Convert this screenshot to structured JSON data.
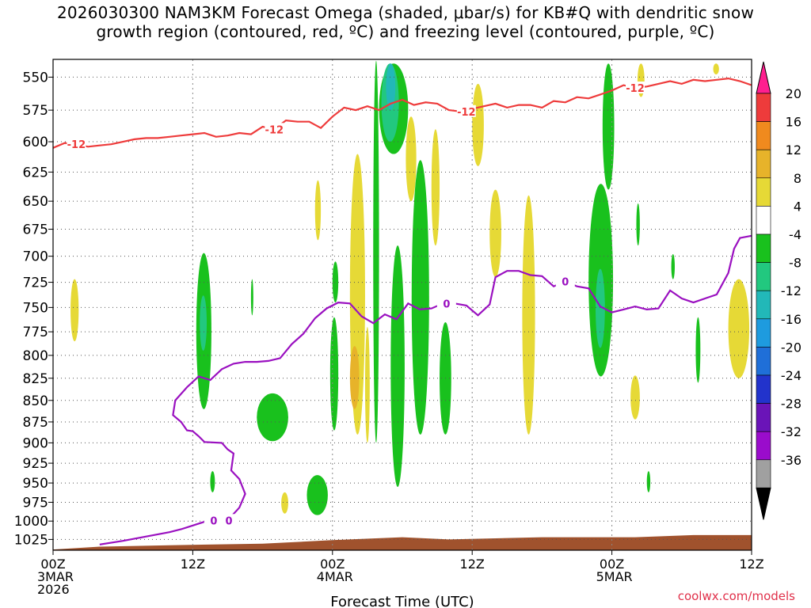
{
  "title_line1": "2026030300 NAM3KM Forecast Omega (shaded, μbar/s) for KB#Q with dendritic snow",
  "title_line2": "growth region (contoured, red, ºC) and freezing level (contoured, purple, ºC)",
  "credit": "coolwx.com/models",
  "chart_data": {
    "type": "heatmap",
    "xlabel": "Forecast Time (UTC)",
    "ylabel": "",
    "x_range_hours": [
      0,
      60
    ],
    "y_range_mb": [
      1040,
      537
    ],
    "y_scale": "log-pressure",
    "grid": true,
    "y_ticks": [
      550,
      575,
      600,
      625,
      650,
      675,
      700,
      725,
      750,
      775,
      800,
      825,
      850,
      875,
      900,
      925,
      950,
      975,
      1000,
      1025
    ],
    "x_ticks": [
      {
        "hour": 0,
        "lines": [
          "00Z",
          "3MAR",
          "2026"
        ]
      },
      {
        "hour": 12,
        "lines": [
          "12Z"
        ]
      },
      {
        "hour": 24,
        "lines": [
          "00Z",
          "4MAR"
        ]
      },
      {
        "hour": 36,
        "lines": [
          "12Z"
        ]
      },
      {
        "hour": 48,
        "lines": [
          "00Z",
          "5MAR"
        ]
      },
      {
        "hour": 60,
        "lines": [
          "12Z"
        ]
      }
    ],
    "colorbar": {
      "labels": [
        "20",
        "16",
        "12",
        "8",
        "4",
        "-4",
        "-8",
        "-12",
        "-16",
        "-20",
        "-24",
        "-28",
        "-32",
        "-36"
      ],
      "colors": [
        "#ff1f8f",
        "#ee3b3b",
        "#f08a1e",
        "#e7b32a",
        "#e6d936",
        "#ffffff",
        "#19c11d",
        "#22c87f",
        "#22b8b8",
        "#1e9bdf",
        "#1f6fd8",
        "#2233cc",
        "#6a14b8",
        "#9a0ccc",
        "#a0a0a0",
        "#000000"
      ]
    },
    "terrain_color": "#a0522d",
    "contour_labels": {
      "snow_dgz": "-12",
      "freezing": "0"
    },
    "snow_growth_contour": {
      "color": "#ee3b3b",
      "points": [
        [
          0,
          605
        ],
        [
          1,
          601
        ],
        [
          2,
          602
        ],
        [
          3,
          604
        ],
        [
          4,
          603
        ],
        [
          5,
          602
        ],
        [
          6,
          600
        ],
        [
          7,
          598
        ],
        [
          8,
          597
        ],
        [
          9,
          597
        ],
        [
          10,
          596
        ],
        [
          11,
          595
        ],
        [
          12,
          594
        ],
        [
          13,
          593
        ],
        [
          14,
          596
        ],
        [
          15,
          595
        ],
        [
          16,
          593
        ],
        [
          17,
          594
        ],
        [
          18,
          588
        ],
        [
          19,
          590
        ],
        [
          20,
          583
        ],
        [
          21,
          584
        ],
        [
          22,
          584
        ],
        [
          23,
          589
        ],
        [
          24,
          580
        ],
        [
          25,
          573
        ],
        [
          26,
          575
        ],
        [
          27,
          572
        ],
        [
          28,
          575
        ],
        [
          29,
          570
        ],
        [
          30,
          567
        ],
        [
          31,
          571
        ],
        [
          32,
          569
        ],
        [
          33,
          570
        ],
        [
          34,
          575
        ],
        [
          35,
          576
        ],
        [
          36,
          574
        ],
        [
          37,
          572
        ],
        [
          38,
          570
        ],
        [
          39,
          573
        ],
        [
          40,
          571
        ],
        [
          41,
          571
        ],
        [
          42,
          573
        ],
        [
          43,
          568
        ],
        [
          44,
          569
        ],
        [
          45,
          565
        ],
        [
          46,
          566
        ],
        [
          47,
          563
        ],
        [
          48,
          560
        ],
        [
          49,
          556
        ],
        [
          50,
          558
        ],
        [
          51,
          557
        ],
        [
          52,
          555
        ],
        [
          53,
          553
        ],
        [
          54,
          555
        ],
        [
          55,
          552
        ],
        [
          56,
          553
        ],
        [
          57,
          552
        ],
        [
          58,
          551
        ],
        [
          59,
          553
        ],
        [
          60,
          556
        ]
      ],
      "label_hours": [
        2,
        19,
        35.5,
        50
      ]
    },
    "freezing_level_contour": {
      "color": "#9a10c0",
      "points": [
        [
          4,
          1032
        ],
        [
          6,
          1027
        ],
        [
          8,
          1021
        ],
        [
          10,
          1015
        ],
        [
          11,
          1011
        ],
        [
          12,
          1006
        ],
        [
          13,
          1001
        ],
        [
          14,
          999
        ],
        [
          15,
          999
        ],
        [
          16,
          982
        ],
        [
          16.5,
          964
        ],
        [
          16,
          945
        ],
        [
          15.3,
          934
        ],
        [
          15.5,
          913
        ],
        [
          15,
          908
        ],
        [
          14.5,
          900
        ],
        [
          13,
          899
        ],
        [
          12.5,
          892
        ],
        [
          12,
          886
        ],
        [
          11.5,
          885
        ],
        [
          11,
          875
        ],
        [
          10.3,
          867
        ],
        [
          10.5,
          850
        ],
        [
          11.5,
          835
        ],
        [
          12.5,
          823
        ],
        [
          13.5,
          827
        ],
        [
          14.5,
          815
        ],
        [
          15.5,
          809
        ],
        [
          16.5,
          807
        ],
        [
          17.5,
          807
        ],
        [
          18.5,
          806
        ],
        [
          19.5,
          803
        ],
        [
          20.5,
          788
        ],
        [
          21.5,
          777
        ],
        [
          22.5,
          761
        ],
        [
          23.5,
          751
        ],
        [
          24.5,
          745
        ],
        [
          25.5,
          746
        ],
        [
          26.5,
          759
        ],
        [
          27.5,
          766
        ],
        [
          28.5,
          757
        ],
        [
          29.5,
          762
        ],
        [
          30.5,
          746
        ],
        [
          31.5,
          752
        ],
        [
          32.5,
          751
        ],
        [
          33.5,
          746
        ],
        [
          34.5,
          746
        ],
        [
          35.5,
          748
        ],
        [
          36.5,
          758
        ],
        [
          37.5,
          747
        ],
        [
          38,
          720
        ],
        [
          39,
          714
        ],
        [
          40,
          714
        ],
        [
          41,
          718
        ],
        [
          42,
          719
        ],
        [
          43,
          729
        ],
        [
          44,
          724
        ],
        [
          45,
          729
        ],
        [
          46,
          731
        ],
        [
          47,
          749
        ],
        [
          48,
          755
        ],
        [
          49,
          752
        ],
        [
          50,
          749
        ],
        [
          51,
          752
        ],
        [
          52,
          751
        ],
        [
          53,
          733
        ],
        [
          54,
          741
        ],
        [
          55,
          745
        ],
        [
          56,
          741
        ],
        [
          57,
          737
        ],
        [
          58,
          716
        ],
        [
          58.5,
          693
        ],
        [
          59,
          683
        ],
        [
          60,
          681
        ]
      ],
      "label_hours": [
        13.8,
        15.1,
        33.8,
        44
      ]
    },
    "omega_regions": [
      {
        "v": 4,
        "t": [
          1.5,
          2.2
        ],
        "p": [
          722,
          785
        ]
      },
      {
        "v": 4,
        "t": [
          22.5,
          23.0
        ],
        "p": [
          632,
          685
        ]
      },
      {
        "v": 4,
        "t": [
          26.8,
          27.2
        ],
        "p": [
          770,
          900
        ]
      },
      {
        "v": 4,
        "t": [
          25.5,
          26.8
        ],
        "p": [
          610,
          890
        ]
      },
      {
        "v": 4,
        "t": [
          36.0,
          37.0
        ],
        "p": [
          555,
          620
        ]
      },
      {
        "v": 4,
        "t": [
          30.3,
          31.2
        ],
        "p": [
          580,
          650
        ]
      },
      {
        "v": 4,
        "t": [
          32.5,
          33.2
        ],
        "p": [
          590,
          690
        ]
      },
      {
        "v": 4,
        "t": [
          37.5,
          38.5
        ],
        "p": [
          640,
          720
        ]
      },
      {
        "v": 4,
        "t": [
          40.3,
          41.4
        ],
        "p": [
          645,
          890
        ]
      },
      {
        "v": 4,
        "t": [
          49.6,
          50.4
        ],
        "p": [
          822,
          872
        ]
      },
      {
        "v": 4,
        "t": [
          50.2,
          50.8
        ],
        "p": [
          540,
          565
        ]
      },
      {
        "v": 4,
        "t": [
          58.0,
          59.8
        ],
        "p": [
          722,
          825
        ]
      },
      {
        "v": 4,
        "t": [
          19.6,
          20.2
        ],
        "p": [
          962,
          990
        ]
      },
      {
        "v": 4,
        "t": [
          56.7,
          57.2
        ],
        "p": [
          540,
          548
        ]
      },
      {
        "v": 8,
        "t": [
          25.5,
          26.3
        ],
        "p": [
          790,
          860
        ]
      },
      {
        "v": -4,
        "t": [
          12.3,
          13.6
        ],
        "p": [
          697,
          860
        ]
      },
      {
        "v": -4,
        "t": [
          17.5,
          20.2
        ],
        "p": [
          842,
          898
        ]
      },
      {
        "v": -4,
        "t": [
          21.8,
          23.6
        ],
        "p": [
          940,
          992
        ]
      },
      {
        "v": -4,
        "t": [
          23.8,
          24.5
        ],
        "p": [
          760,
          885
        ]
      },
      {
        "v": -4,
        "t": [
          24.0,
          24.5
        ],
        "p": [
          705,
          745
        ]
      },
      {
        "v": -4,
        "t": [
          27.5,
          28.0
        ],
        "p": [
          538,
          900
        ]
      },
      {
        "v": -4,
        "t": [
          28.0,
          30.5
        ],
        "p": [
          540,
          610
        ]
      },
      {
        "v": -4,
        "t": [
          29.0,
          30.2
        ],
        "p": [
          690,
          955
        ]
      },
      {
        "v": -4,
        "t": [
          30.8,
          32.3
        ],
        "p": [
          615,
          890
        ]
      },
      {
        "v": -4,
        "t": [
          33.2,
          34.2
        ],
        "p": [
          765,
          890
        ]
      },
      {
        "v": -4,
        "t": [
          46.0,
          48.1
        ],
        "p": [
          635,
          823
        ]
      },
      {
        "v": -4,
        "t": [
          47.2,
          48.2
        ],
        "p": [
          540,
          640
        ]
      },
      {
        "v": -4,
        "t": [
          55.2,
          55.6
        ],
        "p": [
          760,
          830
        ]
      },
      {
        "v": -4,
        "t": [
          50.1,
          50.4
        ],
        "p": [
          652,
          690
        ]
      },
      {
        "v": -4,
        "t": [
          53.1,
          53.4
        ],
        "p": [
          698,
          722
        ]
      },
      {
        "v": -4,
        "t": [
          13.5,
          13.9
        ],
        "p": [
          935,
          962
        ]
      },
      {
        "v": -4,
        "t": [
          17.0,
          17.2
        ],
        "p": [
          722,
          758
        ]
      },
      {
        "v": -4,
        "t": [
          51.0,
          51.3
        ],
        "p": [
          935,
          962
        ]
      },
      {
        "v": -8,
        "t": [
          12.6,
          13.2
        ],
        "p": [
          738,
          795
        ]
      },
      {
        "v": -8,
        "t": [
          46.6,
          47.4
        ],
        "p": [
          712,
          792
        ]
      },
      {
        "v": -8,
        "t": [
          28.2,
          29.7
        ],
        "p": [
          540,
          600
        ]
      },
      {
        "v": -12,
        "t": [
          28.6,
          29.4
        ],
        "p": [
          540,
          575
        ]
      }
    ]
  }
}
